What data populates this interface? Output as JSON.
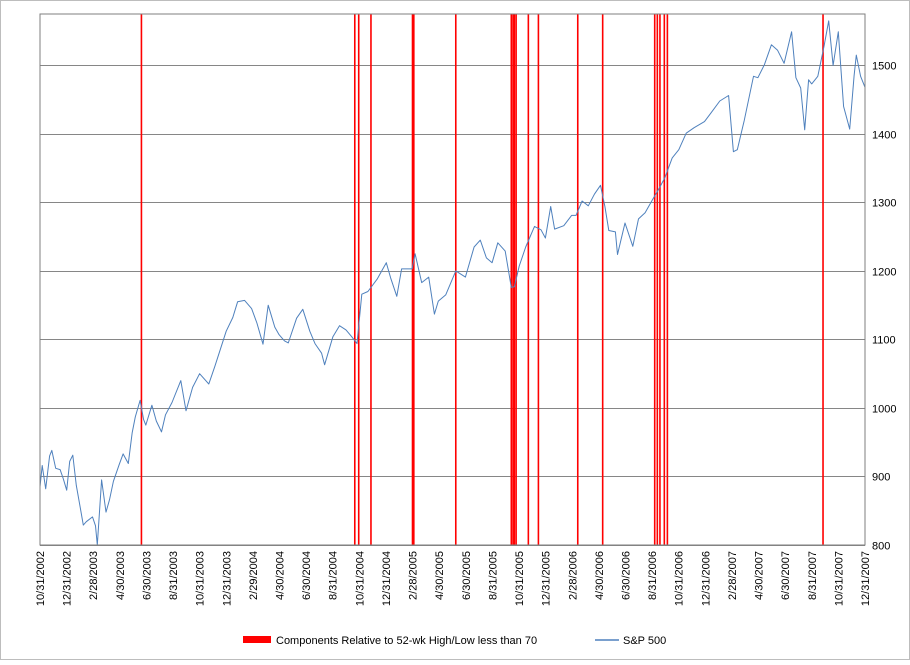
{
  "chart_data": {
    "type": "line",
    "title": "",
    "xlabel": "",
    "ylabel": "",
    "ylim": [
      800,
      1575
    ],
    "y_axis_position": "right",
    "y_ticks": [
      800,
      900,
      1000,
      1100,
      1200,
      1300,
      1400,
      1500
    ],
    "y_tick_labels": [
      "800",
      "900",
      "1000",
      "1100",
      "1200",
      "1300",
      "1400",
      "1500"
    ],
    "x_range": [
      "2002-10-31",
      "2007-12-31"
    ],
    "x_tick_labels": [
      "10/31/2002",
      "12/31/2002",
      "2/28/2003",
      "4/30/2003",
      "6/30/2003",
      "8/31/2003",
      "10/31/2003",
      "12/31/2003",
      "2/29/2004",
      "4/30/2004",
      "6/30/2004",
      "8/31/2004",
      "10/31/2004",
      "12/31/2004",
      "2/28/2005",
      "4/30/2005",
      "6/30/2005",
      "8/31/2005",
      "10/31/2005",
      "12/31/2005",
      "2/28/2006",
      "4/30/2006",
      "6/30/2006",
      "8/31/2006",
      "10/31/2006",
      "12/31/2006",
      "2/28/2007",
      "4/30/2007",
      "6/30/2007",
      "8/31/2007",
      "10/31/2007",
      "12/31/2007"
    ],
    "grid": "horizontal",
    "legend_position": "bottom",
    "series": [
      {
        "name": "Components Relative to 52-wk High/Low less than 70",
        "type": "signal_bars",
        "color": "#ff0000",
        "dates": [
          "2003-06-20",
          "2004-10-20",
          "2004-10-29",
          "2004-11-26",
          "2005-03-01",
          "2005-03-04",
          "2005-06-08",
          "2005-10-13",
          "2005-10-17",
          "2005-10-20",
          "2005-10-24",
          "2005-11-21",
          "2005-12-14",
          "2006-03-14",
          "2006-05-10",
          "2006-09-06",
          "2006-09-12",
          "2006-09-18",
          "2006-09-28",
          "2006-10-05",
          "2007-09-26"
        ]
      },
      {
        "name": "S&P 500",
        "type": "line",
        "color": "#4f81bd",
        "points": [
          [
            "2002-10-31",
            885
          ],
          [
            "2002-11-05",
            916
          ],
          [
            "2002-11-13",
            882
          ],
          [
            "2002-11-22",
            930
          ],
          [
            "2002-11-27",
            938
          ],
          [
            "2002-12-06",
            912
          ],
          [
            "2002-12-16",
            910
          ],
          [
            "2002-12-23",
            897
          ],
          [
            "2002-12-31",
            880
          ],
          [
            "2003-01-07",
            922
          ],
          [
            "2003-01-14",
            931
          ],
          [
            "2003-01-22",
            887
          ],
          [
            "2003-01-31",
            855
          ],
          [
            "2003-02-07",
            829
          ],
          [
            "2003-02-14",
            834
          ],
          [
            "2003-02-28",
            841
          ],
          [
            "2003-03-07",
            828
          ],
          [
            "2003-03-11",
            800
          ],
          [
            "2003-03-21",
            895
          ],
          [
            "2003-03-31",
            848
          ],
          [
            "2003-04-08",
            866
          ],
          [
            "2003-04-17",
            893
          ],
          [
            "2003-04-30",
            917
          ],
          [
            "2003-05-09",
            933
          ],
          [
            "2003-05-21",
            919
          ],
          [
            "2003-05-30",
            964
          ],
          [
            "2003-06-06",
            987
          ],
          [
            "2003-06-17",
            1011
          ],
          [
            "2003-06-25",
            983
          ],
          [
            "2003-06-30",
            975
          ],
          [
            "2003-07-14",
            1004
          ],
          [
            "2003-07-24",
            981
          ],
          [
            "2003-08-05",
            965
          ],
          [
            "2003-08-14",
            990
          ],
          [
            "2003-08-29",
            1008
          ],
          [
            "2003-09-18",
            1040
          ],
          [
            "2003-09-30",
            996
          ],
          [
            "2003-10-15",
            1030
          ],
          [
            "2003-10-31",
            1050
          ],
          [
            "2003-11-21",
            1035
          ],
          [
            "2003-12-05",
            1061
          ],
          [
            "2003-12-31",
            1112
          ],
          [
            "2004-01-15",
            1132
          ],
          [
            "2004-01-26",
            1155
          ],
          [
            "2004-02-11",
            1157
          ],
          [
            "2004-02-27",
            1145
          ],
          [
            "2004-03-10",
            1124
          ],
          [
            "2004-03-24",
            1093
          ],
          [
            "2004-04-05",
            1150
          ],
          [
            "2004-04-20",
            1118
          ],
          [
            "2004-04-30",
            1107
          ],
          [
            "2004-05-12",
            1098
          ],
          [
            "2004-05-21",
            1095
          ],
          [
            "2004-06-09",
            1131
          ],
          [
            "2004-06-23",
            1144
          ],
          [
            "2004-07-09",
            1112
          ],
          [
            "2004-07-21",
            1094
          ],
          [
            "2004-08-05",
            1080
          ],
          [
            "2004-08-12",
            1063
          ],
          [
            "2004-08-31",
            1104
          ],
          [
            "2004-09-15",
            1120
          ],
          [
            "2004-09-30",
            1114
          ],
          [
            "2004-10-13",
            1104
          ],
          [
            "2004-10-25",
            1094
          ],
          [
            "2004-11-05",
            1166
          ],
          [
            "2004-11-19",
            1170
          ],
          [
            "2004-12-10",
            1188
          ],
          [
            "2004-12-31",
            1212
          ],
          [
            "2005-01-10",
            1190
          ],
          [
            "2005-01-24",
            1163
          ],
          [
            "2005-02-04",
            1203
          ],
          [
            "2005-02-28",
            1203
          ],
          [
            "2005-03-07",
            1225
          ],
          [
            "2005-03-22",
            1183
          ],
          [
            "2005-04-07",
            1191
          ],
          [
            "2005-04-20",
            1137
          ],
          [
            "2005-04-29",
            1156
          ],
          [
            "2005-05-16",
            1165
          ],
          [
            "2005-06-08",
            1200
          ],
          [
            "2005-06-30",
            1191
          ],
          [
            "2005-07-20",
            1235
          ],
          [
            "2005-08-03",
            1245
          ],
          [
            "2005-08-17",
            1219
          ],
          [
            "2005-08-30",
            1212
          ],
          [
            "2005-09-12",
            1241
          ],
          [
            "2005-09-29",
            1229
          ],
          [
            "2005-10-13",
            1176
          ],
          [
            "2005-10-20",
            1177
          ],
          [
            "2005-10-31",
            1207
          ],
          [
            "2005-11-15",
            1235
          ],
          [
            "2005-12-05",
            1265
          ],
          [
            "2005-12-20",
            1260
          ],
          [
            "2005-12-30",
            1248
          ],
          [
            "2006-01-11",
            1294
          ],
          [
            "2006-01-20",
            1261
          ],
          [
            "2006-02-10",
            1266
          ],
          [
            "2006-02-28",
            1281
          ],
          [
            "2006-03-10",
            1281
          ],
          [
            "2006-03-24",
            1302
          ],
          [
            "2006-04-07",
            1295
          ],
          [
            "2006-04-21",
            1312
          ],
          [
            "2006-05-05",
            1325
          ],
          [
            "2006-05-15",
            1294
          ],
          [
            "2006-05-24",
            1259
          ],
          [
            "2006-06-08",
            1257
          ],
          [
            "2006-06-13",
            1224
          ],
          [
            "2006-06-30",
            1270
          ],
          [
            "2006-07-18",
            1236
          ],
          [
            "2006-07-31",
            1276
          ],
          [
            "2006-08-15",
            1285
          ],
          [
            "2006-08-31",
            1303
          ],
          [
            "2006-09-15",
            1319
          ],
          [
            "2006-09-29",
            1336
          ],
          [
            "2006-10-16",
            1365
          ],
          [
            "2006-10-31",
            1377
          ],
          [
            "2006-11-17",
            1401
          ],
          [
            "2006-12-05",
            1409
          ],
          [
            "2006-12-29",
            1418
          ],
          [
            "2007-01-12",
            1430
          ],
          [
            "2007-02-02",
            1448
          ],
          [
            "2007-02-22",
            1456
          ],
          [
            "2007-03-05",
            1374
          ],
          [
            "2007-03-14",
            1377
          ],
          [
            "2007-03-30",
            1420
          ],
          [
            "2007-04-20",
            1484
          ],
          [
            "2007-04-30",
            1482
          ],
          [
            "2007-05-15",
            1501
          ],
          [
            "2007-05-31",
            1530
          ],
          [
            "2007-06-14",
            1522
          ],
          [
            "2007-06-29",
            1503
          ],
          [
            "2007-07-16",
            1549
          ],
          [
            "2007-07-26",
            1482
          ],
          [
            "2007-08-06",
            1467
          ],
          [
            "2007-08-15",
            1406
          ],
          [
            "2007-08-24",
            1479
          ],
          [
            "2007-08-31",
            1473
          ],
          [
            "2007-09-14",
            1484
          ],
          [
            "2007-09-28",
            1527
          ],
          [
            "2007-10-09",
            1565
          ],
          [
            "2007-10-19",
            1500
          ],
          [
            "2007-10-31",
            1549
          ],
          [
            "2007-11-12",
            1440
          ],
          [
            "2007-11-26",
            1407
          ],
          [
            "2007-12-06",
            1485
          ],
          [
            "2007-12-11",
            1515
          ],
          [
            "2007-12-21",
            1484
          ],
          [
            "2007-12-31",
            1468
          ]
        ]
      }
    ]
  }
}
